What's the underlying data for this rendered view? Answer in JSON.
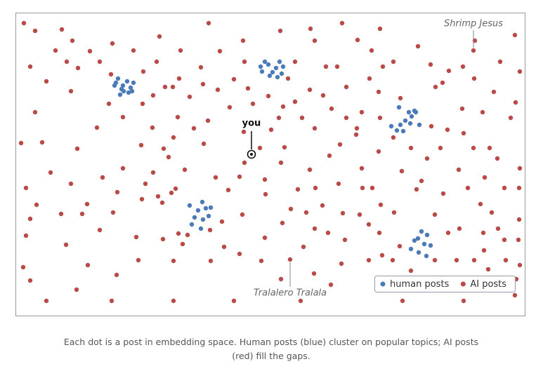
{
  "chart_data": {
    "type": "scatter",
    "xlim": [
      0,
      725
    ],
    "ylim": [
      0,
      432
    ],
    "legend": "lower right",
    "series": [
      {
        "name": "human posts",
        "color": "#4a7ab8",
        "x": [
          143,
          146,
          153,
          159,
          164,
          154,
          161,
          149,
          168,
          151,
          166,
          141,
          349,
          355,
          360,
          351,
          366,
          371,
          376,
          381,
          373,
          362,
          379,
          546,
          560,
          568,
          564,
          555,
          548,
          562,
          575,
          543,
          552,
          535,
          570,
          248,
          266,
          260,
          271,
          278,
          255,
          267,
          275,
          251,
          264,
          578,
          586,
          568,
          582,
          591,
          563,
          574,
          585,
          573
        ],
        "y": [
          332,
          338,
          328,
          334,
          325,
          320,
          318,
          315,
          332,
          323,
          320,
          328,
          355,
          362,
          358,
          348,
          347,
          353,
          362,
          355,
          340,
          342,
          345,
          297,
          290,
          292,
          284,
          278,
          272,
          274,
          272,
          264,
          263,
          270,
          290,
          157,
          162,
          150,
          153,
          154,
          140,
          137,
          142,
          130,
          124,
          120,
          115,
          107,
          102,
          100,
          95,
          90,
          85,
          110
        ]
      },
      {
        "name": "AI posts",
        "color": "#b94a48",
        "x": [
          12,
          275,
          465,
          66,
          28,
          205,
          377,
          420,
          519,
          711,
          81,
          138,
          324,
          426,
          487,
          654,
          573,
          57,
          106,
          168,
          235,
          291,
          507,
          652,
          73,
          120,
          201,
          326,
          398,
          538,
          690,
          591,
          21,
          89,
          264,
          442,
          458,
          523,
          617,
          637,
          718,
          136,
          182,
          233,
          388,
          504,
          653,
          608,
          44,
          311,
          213,
          224,
          267,
          331,
          419,
          471,
          598,
          681,
          79,
          288,
          196,
          248,
          360,
          517,
          398,
          438,
          548,
          712,
          133,
          181,
          338,
          305,
          381,
          450,
          493,
          636,
          665,
          28,
          153,
          231,
          274,
          375,
          408,
          471,
          519,
          705,
          116,
          195,
          254,
          325,
          364,
          426,
          486,
          592,
          615,
          638,
          485,
          8,
          38,
          179,
          225,
          268,
          348,
          383,
          462,
          538,
          563,
          605,
          652,
          675,
          88,
          211,
          326,
          218,
          447,
          517,
          586,
          686,
          50,
          153,
          196,
          241,
          378,
          419,
          493,
          550,
          631,
          718,
          124,
          285,
          319,
          355,
          460,
          578,
          668,
          79,
          185,
          228,
          402,
          427,
          494,
          508,
          571,
          644,
          696,
          717,
          15,
          145,
          222,
          303,
          356,
          609,
          203,
          180,
          30,
          102,
          209,
          437,
          520,
          662,
          678,
          65,
          95,
          139,
          392,
          414,
          466,
          490,
          539,
          597,
          717,
          21,
          294,
          323,
          380,
          503,
          632,
          687,
          15,
          120,
          232,
          245,
          277,
          426,
          445,
          518,
          616,
          666,
          210,
          238,
          355,
          469,
          547,
          696,
          716,
          72,
          172,
          297,
          410,
          319,
          522,
          667,
          103,
          175,
          225,
          278,
          350,
          391,
          464,
          503,
          537,
          597,
          628,
          653,
          698,
          718,
          11,
          144,
          378,
          425,
          563,
          673,
          21,
          87,
          449,
          713,
          44,
          137,
          225,
          311,
          406,
          551,
          638,
          711
        ],
        "y": [
          417,
          417,
          417,
          408,
          406,
          398,
          406,
          409,
          409,
          400,
          392,
          388,
          392,
          392,
          393,
          392,
          384,
          378,
          377,
          378,
          378,
          377,
          378,
          378,
          362,
          362,
          362,
          362,
          362,
          362,
          362,
          358,
          355,
          353,
          354,
          355,
          355,
          355,
          349,
          355,
          348,
          344,
          348,
          338,
          338,
          338,
          338,
          332,
          334,
          337,
          326,
          326,
          330,
          324,
          322,
          326,
          326,
          319,
          320,
          322,
          314,
          312,
          313,
          319,
          305,
          314,
          310,
          304,
          302,
          302,
          302,
          297,
          298,
          295,
          290,
          295,
          290,
          290,
          283,
          283,
          278,
          282,
          282,
          282,
          282,
          282,
          268,
          268,
          267,
          262,
          265,
          267,
          267,
          270,
          265,
          260,
          258,
          246,
          247,
          243,
          254,
          245,
          239,
          240,
          244,
          254,
          239,
          239,
          239,
          239,
          238,
          238,
          218,
          226,
          228,
          234,
          224,
          224,
          204,
          210,
          204,
          208,
          218,
          208,
          210,
          206,
          208,
          210,
          197,
          197,
          198,
          194,
          188,
          192,
          197,
          188,
          188,
          181,
          180,
          182,
          182,
          182,
          180,
          182,
          182,
          182,
          182,
          176,
          175,
          179,
          173,
          174,
          170,
          166,
          158,
          159,
          161,
          157,
          158,
          159,
          147,
          145,
          145,
          147,
          152,
          147,
          146,
          144,
          147,
          144,
          137,
          138,
          134,
          144,
          132,
          130,
          124,
          124,
          114,
          122,
          117,
          115,
          122,
          124,
          118,
          118,
          118,
          118,
          109,
          102,
          111,
          108,
          99,
          108,
          108,
          101,
          112,
          98,
          98,
          88,
          86,
          93,
          72,
          79,
          78,
          78,
          78,
          80,
          74,
          79,
          79,
          79,
          79,
          79,
          79,
          72,
          69,
          58,
          52,
          60,
          64,
          66,
          50,
          37,
          44,
          52,
          21,
          21,
          21,
          21,
          21,
          21,
          21,
          29
        ]
      }
    ],
    "annotations": [
      {
        "text": "you",
        "x": 336,
        "y": 230
      },
      {
        "text": "Shrimp Jesus",
        "x": 652,
        "y": 378
      },
      {
        "text": "Tralalero Tralala",
        "x": 391,
        "y": 80
      }
    ],
    "caption": "Each dot is a post in embedding space. Human posts (blue) cluster on popular topics; AI posts (red) fill the gaps."
  }
}
